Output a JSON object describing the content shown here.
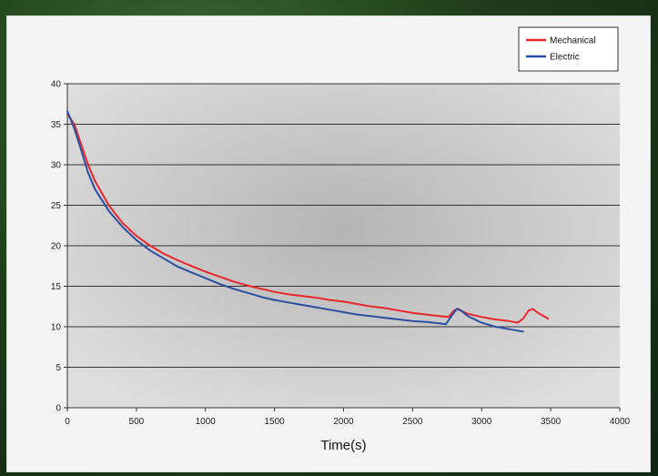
{
  "chart_data": {
    "type": "line",
    "title": "",
    "xlabel": "Time(s)",
    "ylabel": "",
    "xlim": [
      0,
      4000
    ],
    "ylim": [
      0,
      40
    ],
    "xticks": [
      0,
      500,
      1000,
      1500,
      2000,
      2500,
      3000,
      3500,
      4000
    ],
    "yticks": [
      0,
      5,
      10,
      15,
      20,
      25,
      30,
      35,
      40
    ],
    "grid": "horizontal",
    "legend_position": "top-right",
    "series": [
      {
        "name": "Mechanical",
        "color": "#e8262b",
        "points": [
          [
            0,
            36.3
          ],
          [
            50,
            35
          ],
          [
            100,
            32.5
          ],
          [
            150,
            30
          ],
          [
            200,
            28
          ],
          [
            300,
            25
          ],
          [
            400,
            22.8
          ],
          [
            500,
            21.2
          ],
          [
            600,
            20
          ],
          [
            700,
            19
          ],
          [
            800,
            18.2
          ],
          [
            900,
            17.5
          ],
          [
            1000,
            16.8
          ],
          [
            1100,
            16.2
          ],
          [
            1200,
            15.6
          ],
          [
            1300,
            15.1
          ],
          [
            1400,
            14.7
          ],
          [
            1500,
            14.3
          ],
          [
            1600,
            14.0
          ],
          [
            1700,
            13.8
          ],
          [
            1800,
            13.6
          ],
          [
            1900,
            13.3
          ],
          [
            2000,
            13.1
          ],
          [
            2100,
            12.8
          ],
          [
            2200,
            12.5
          ],
          [
            2300,
            12.3
          ],
          [
            2400,
            12.0
          ],
          [
            2500,
            11.7
          ],
          [
            2600,
            11.5
          ],
          [
            2700,
            11.3
          ],
          [
            2760,
            11.2
          ],
          [
            2800,
            12.0
          ],
          [
            2830,
            12.2
          ],
          [
            2860,
            11.9
          ],
          [
            2900,
            11.6
          ],
          [
            3000,
            11.2
          ],
          [
            3100,
            10.9
          ],
          [
            3200,
            10.7
          ],
          [
            3260,
            10.5
          ],
          [
            3300,
            11.0
          ],
          [
            3340,
            12.0
          ],
          [
            3370,
            12.2
          ],
          [
            3400,
            11.8
          ],
          [
            3450,
            11.3
          ],
          [
            3480,
            11.0
          ]
        ]
      },
      {
        "name": "Electric",
        "color": "#2b4fa0",
        "points": [
          [
            0,
            36.6
          ],
          [
            50,
            34.5
          ],
          [
            100,
            31.8
          ],
          [
            150,
            29
          ],
          [
            200,
            27
          ],
          [
            300,
            24.3
          ],
          [
            400,
            22.3
          ],
          [
            500,
            20.7
          ],
          [
            600,
            19.4
          ],
          [
            700,
            18.4
          ],
          [
            800,
            17.4
          ],
          [
            900,
            16.7
          ],
          [
            1000,
            16.0
          ],
          [
            1100,
            15.3
          ],
          [
            1200,
            14.7
          ],
          [
            1300,
            14.2
          ],
          [
            1400,
            13.7
          ],
          [
            1500,
            13.3
          ],
          [
            1600,
            13.0
          ],
          [
            1700,
            12.7
          ],
          [
            1800,
            12.4
          ],
          [
            1900,
            12.1
          ],
          [
            2000,
            11.8
          ],
          [
            2100,
            11.5
          ],
          [
            2200,
            11.3
          ],
          [
            2300,
            11.1
          ],
          [
            2400,
            10.9
          ],
          [
            2500,
            10.7
          ],
          [
            2600,
            10.6
          ],
          [
            2700,
            10.4
          ],
          [
            2740,
            10.3
          ],
          [
            2780,
            11.3
          ],
          [
            2820,
            12.2
          ],
          [
            2850,
            12.0
          ],
          [
            2900,
            11.3
          ],
          [
            3000,
            10.5
          ],
          [
            3100,
            10.0
          ],
          [
            3200,
            9.7
          ],
          [
            3300,
            9.4
          ]
        ]
      }
    ]
  }
}
